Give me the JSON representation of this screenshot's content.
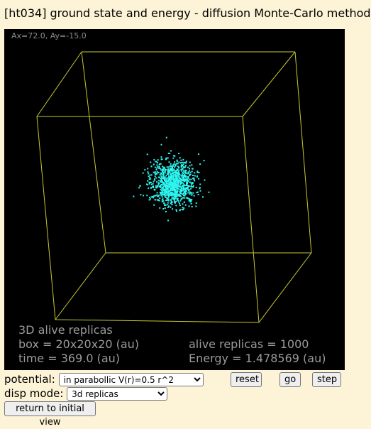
{
  "window": {
    "title": "[ht034] ground state and energy - diffusion Monte-Carlo method"
  },
  "view": {
    "angles_label": "Ax=72.0, Ay=-15.0",
    "box_color": "#c8c832",
    "replica_color": "#2ff5f0",
    "replica_cloud_sigma_au": 1.0
  },
  "info": {
    "mode_label": "3D alive replicas",
    "box_label": "box = 20x20x20 (au)",
    "time_label": "time = 369.0 (au)",
    "alive_label": "alive replicas = 1000",
    "energy_label": "Energy = 1.478569 (au)"
  },
  "controls": {
    "potential_label": "potential:",
    "potential_selected": "in parabollic V(r)=0.5 r^2",
    "disp_mode_label": "disp mode:",
    "disp_mode_selected": "3d replicas",
    "reset_label": "reset",
    "go_label": "go",
    "step_label": "step",
    "return_label": "return to initial view"
  }
}
